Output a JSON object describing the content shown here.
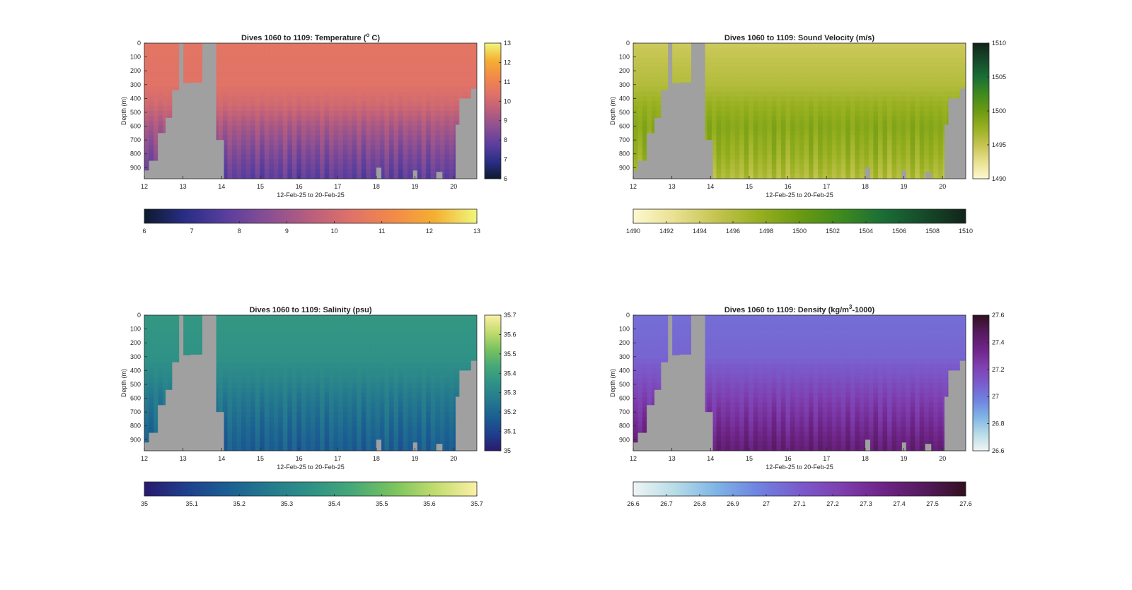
{
  "chart_data": [
    {
      "type": "heatmap",
      "key": "temp",
      "title_main": "Dives 1060 to 1109: Temperature (",
      "title_sup": "o",
      "title_tail": " C)",
      "xlabel": "12-Feb-25 to 20-Feb-25",
      "ylabel": "Depth (m)",
      "xlim": [
        12,
        20.6
      ],
      "ylim": [
        0,
        980
      ],
      "x_ticks": [
        "12",
        "13",
        "14",
        "15",
        "16",
        "17",
        "18",
        "19",
        "20"
      ],
      "y_ticks": [
        "0",
        "100",
        "200",
        "300",
        "400",
        "500",
        "600",
        "700",
        "800",
        "900"
      ],
      "clim": [
        6,
        13
      ],
      "colormap": [
        "#0d1a2e",
        "#2a2e86",
        "#5b3e9e",
        "#8a4f93",
        "#b95e7d",
        "#e07268",
        "#f28a48",
        "#f5b032",
        "#eff77c"
      ],
      "profile": [
        [
          0,
          10.5
        ],
        [
          300,
          10.4
        ],
        [
          450,
          10.0
        ],
        [
          600,
          9.2
        ],
        [
          800,
          8.4
        ],
        [
          980,
          7.8
        ]
      ],
      "vertical_pattern": "alternating",
      "colorbar_vertical_ticks": [
        "6",
        "7",
        "8",
        "9",
        "10",
        "11",
        "12",
        "13"
      ],
      "colorbar_horizontal_ticks": [
        "6",
        "7",
        "8",
        "9",
        "10",
        "11",
        "12",
        "13"
      ],
      "gaps": [
        [
          12.0,
          12.12,
          920
        ],
        [
          12.12,
          12.35,
          850
        ],
        [
          12.35,
          12.55,
          650
        ],
        [
          12.55,
          12.72,
          540
        ],
        [
          12.72,
          12.9,
          340
        ],
        [
          12.9,
          13.0,
          0
        ],
        [
          13.0,
          13.2,
          290
        ],
        [
          13.2,
          13.5,
          285
        ],
        [
          13.5,
          13.85,
          0
        ],
        [
          13.85,
          14.05,
          700
        ],
        [
          18.0,
          18.12,
          900
        ],
        [
          18.95,
          19.05,
          920
        ],
        [
          19.55,
          19.7,
          930
        ],
        [
          20.05,
          20.15,
          590
        ],
        [
          20.15,
          20.45,
          400
        ],
        [
          20.45,
          20.6,
          330
        ]
      ]
    },
    {
      "type": "heatmap",
      "key": "sv",
      "title_main": "Dives 1060 to 1109: Sound Velocity (m/s)",
      "title_sup": "",
      "title_tail": "",
      "xlabel": "12-Feb-25 to 20-Feb-25",
      "ylabel": "Depth (m)",
      "xlim": [
        12,
        20.6
      ],
      "ylim": [
        0,
        980
      ],
      "x_ticks": [
        "12",
        "13",
        "14",
        "15",
        "16",
        "17",
        "18",
        "19",
        "20"
      ],
      "y_ticks": [
        "0",
        "100",
        "200",
        "300",
        "400",
        "500",
        "600",
        "700",
        "800",
        "900"
      ],
      "clim": [
        1490,
        1510
      ],
      "colormap": [
        "#fdf8d0",
        "#e9e090",
        "#c4c450",
        "#98b020",
        "#6b9a12",
        "#3f8a1e",
        "#1a6e36",
        "#154a2a",
        "#122419"
      ],
      "profile": [
        [
          0,
          1494.5
        ],
        [
          300,
          1496.0
        ],
        [
          450,
          1497.5
        ],
        [
          600,
          1498.5
        ],
        [
          800,
          1497.5
        ],
        [
          980,
          1496.0
        ]
      ],
      "vertical_pattern": "alternating",
      "colorbar_vertical_ticks": [
        "1490",
        "1495",
        "1500",
        "1505",
        "1510"
      ],
      "colorbar_horizontal_ticks": [
        "1490",
        "1492",
        "1494",
        "1496",
        "1498",
        "1500",
        "1502",
        "1504",
        "1506",
        "1508",
        "1510"
      ],
      "gaps": [
        [
          12.0,
          12.12,
          920
        ],
        [
          12.12,
          12.35,
          850
        ],
        [
          12.35,
          12.55,
          650
        ],
        [
          12.55,
          12.72,
          540
        ],
        [
          12.72,
          12.9,
          340
        ],
        [
          12.9,
          13.0,
          0
        ],
        [
          13.0,
          13.2,
          290
        ],
        [
          13.2,
          13.5,
          285
        ],
        [
          13.5,
          13.85,
          0
        ],
        [
          13.85,
          14.05,
          700
        ],
        [
          18.0,
          18.12,
          900
        ],
        [
          18.95,
          19.05,
          920
        ],
        [
          19.55,
          19.7,
          930
        ],
        [
          20.05,
          20.15,
          590
        ],
        [
          20.15,
          20.45,
          400
        ],
        [
          20.45,
          20.6,
          330
        ]
      ]
    },
    {
      "type": "heatmap",
      "key": "sal",
      "title_main": "Dives 1060 to 1109: Salinity (psu)",
      "title_sup": "",
      "title_tail": "",
      "xlabel": "12-Feb-25 to 20-Feb-25",
      "ylabel": "Depth (m)",
      "xlim": [
        12,
        20.6
      ],
      "ylim": [
        0,
        980
      ],
      "x_ticks": [
        "12",
        "13",
        "14",
        "15",
        "16",
        "17",
        "18",
        "19",
        "20"
      ],
      "y_ticks": [
        "0",
        "100",
        "200",
        "300",
        "400",
        "500",
        "600",
        "700",
        "800",
        "900"
      ],
      "clim": [
        35,
        35.7
      ],
      "colormap": [
        "#2a1a6e",
        "#1f3f8c",
        "#1b5f92",
        "#257a8e",
        "#2f9286",
        "#46a878",
        "#7ac35e",
        "#c2dc6e",
        "#fbf0a6"
      ],
      "profile": [
        [
          0,
          35.37
        ],
        [
          300,
          35.35
        ],
        [
          450,
          35.31
        ],
        [
          600,
          35.26
        ],
        [
          800,
          35.21
        ],
        [
          980,
          35.17
        ]
      ],
      "vertical_pattern": "alternating",
      "colorbar_vertical_ticks": [
        "35",
        "35.1",
        "35.2",
        "35.3",
        "35.4",
        "35.5",
        "35.6",
        "35.7"
      ],
      "colorbar_horizontal_ticks": [
        "35",
        "35.1",
        "35.2",
        "35.3",
        "35.4",
        "35.5",
        "35.6",
        "35.7"
      ],
      "gaps": [
        [
          12.0,
          12.12,
          920
        ],
        [
          12.12,
          12.35,
          850
        ],
        [
          12.35,
          12.55,
          650
        ],
        [
          12.55,
          12.72,
          540
        ],
        [
          12.72,
          12.9,
          340
        ],
        [
          12.9,
          13.0,
          0
        ],
        [
          13.0,
          13.2,
          290
        ],
        [
          13.2,
          13.5,
          285
        ],
        [
          13.5,
          13.85,
          0
        ],
        [
          13.85,
          14.05,
          700
        ],
        [
          18.0,
          18.12,
          900
        ],
        [
          18.95,
          19.05,
          920
        ],
        [
          19.55,
          19.7,
          930
        ],
        [
          20.05,
          20.15,
          590
        ],
        [
          20.15,
          20.45,
          400
        ],
        [
          20.45,
          20.6,
          330
        ]
      ]
    },
    {
      "type": "heatmap",
      "key": "dens",
      "title_main": "Dives 1060 to 1109: Density (kg/m",
      "title_sup": "3",
      "title_tail": "-1000)",
      "xlabel": "12-Feb-25 to 20-Feb-25",
      "ylabel": "Depth (m)",
      "xlim": [
        12,
        20.6
      ],
      "ylim": [
        0,
        980
      ],
      "x_ticks": [
        "12",
        "13",
        "14",
        "15",
        "16",
        "17",
        "18",
        "19",
        "20"
      ],
      "y_ticks": [
        "0",
        "100",
        "200",
        "300",
        "400",
        "500",
        "600",
        "700",
        "800",
        "900"
      ],
      "clim": [
        26.6,
        27.6
      ],
      "colormap": [
        "#eef5f5",
        "#b8dce6",
        "#7fb4e6",
        "#6f83e0",
        "#7a5bcc",
        "#7f3fb0",
        "#6e2488",
        "#551a5e",
        "#33101f"
      ],
      "profile": [
        [
          0,
          27.04
        ],
        [
          300,
          27.07
        ],
        [
          450,
          27.14
        ],
        [
          600,
          27.22
        ],
        [
          800,
          27.32
        ],
        [
          980,
          27.42
        ]
      ],
      "vertical_pattern": "alternating",
      "colorbar_vertical_ticks": [
        "26.6",
        "26.8",
        "27",
        "27.2",
        "27.4",
        "27.6"
      ],
      "colorbar_horizontal_ticks": [
        "26.6",
        "26.7",
        "26.8",
        "26.9",
        "27",
        "27.1",
        "27.2",
        "27.3",
        "27.4",
        "27.5",
        "27.6"
      ],
      "gaps": [
        [
          12.0,
          12.12,
          920
        ],
        [
          12.12,
          12.35,
          850
        ],
        [
          12.35,
          12.55,
          650
        ],
        [
          12.55,
          12.72,
          540
        ],
        [
          12.72,
          12.9,
          340
        ],
        [
          12.9,
          13.0,
          0
        ],
        [
          13.0,
          13.2,
          290
        ],
        [
          13.2,
          13.5,
          285
        ],
        [
          13.5,
          13.85,
          0
        ],
        [
          13.85,
          14.05,
          700
        ],
        [
          18.0,
          18.12,
          900
        ],
        [
          18.95,
          19.05,
          920
        ],
        [
          19.55,
          19.7,
          930
        ],
        [
          20.05,
          20.15,
          590
        ],
        [
          20.15,
          20.45,
          400
        ],
        [
          20.45,
          20.6,
          330
        ]
      ]
    }
  ]
}
